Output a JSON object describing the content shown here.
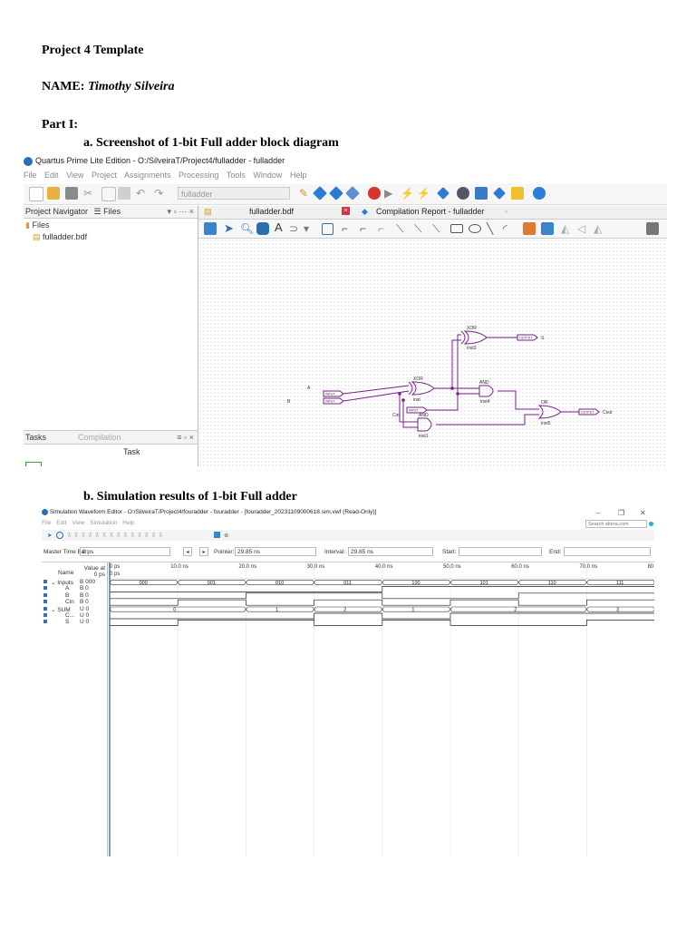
{
  "doc": {
    "heading": "Project 4 Template",
    "name_label": "NAME: ",
    "name_value": "Timothy Silveira",
    "part": "Part I:",
    "item_a": "a.   Screenshot of 1-bit Full adder block diagram",
    "item_b": "b.   Simulation results of 1-bit Full adder"
  },
  "quartus": {
    "title": "Quartus Prime Lite Edition - O:/SilveiraT/Project4/fulladder - fulladder",
    "menu": [
      "File",
      "Edit",
      "View",
      "Project",
      "Assignments",
      "Processing",
      "Tools",
      "Window",
      "Help"
    ],
    "project_combo": "fulladder",
    "navigator_label": "Project Navigator",
    "navigator_view": "Files",
    "files_folder": "Files",
    "file_item": "fulladder.bdf",
    "tab_bdf": "fulladder.bdf",
    "tab_report": "Compilation Report - fulladder",
    "tasks_label": "Tasks",
    "tasks_combo": "Compilation",
    "task_header": "Task",
    "schematic": {
      "input_a": "A",
      "input_b": "B",
      "input_cin": "Cin",
      "output_s": "S",
      "output_cout": "Cout",
      "xor_label": "XOR",
      "and_label": "AND",
      "or_label": "OR",
      "inst_label": "inst",
      "inst1_label": "inst1",
      "inst3_label": "inst3",
      "inst4_label": "inst4",
      "inst5_label": "inst5",
      "input_tag": "INPUT",
      "output_tag": "OUTPUT"
    }
  },
  "waveform": {
    "title": "Simulation Waveform Editor - O:/SilveiraT/Project4/fouradder - fouradder - [fouradder_20231109000618.sim.vwf (Read-Only)]",
    "menu": [
      "File",
      "Edit",
      "View",
      "Simulation",
      "Help"
    ],
    "search_placeholder": "Search altera.com",
    "master_time_label": "Master Time Bar:",
    "master_time": "0 ps",
    "pointer_label": "Pointer:",
    "pointer": "29.85 ns",
    "interval_label": "Interval:",
    "interval": "29.85 ns",
    "start_label": "Start:",
    "end_label": "End:",
    "col_name": "Name",
    "col_value": "Value at 0 ps",
    "cursor_time": "0 ps",
    "cursor_time2": "0 ps",
    "timescale": [
      "0 ps",
      "10.0 ns",
      "20.0 ns",
      "30.0 ns",
      "40.0 ns",
      "50.0 ns",
      "60.0 ns",
      "70.0 ns",
      "80."
    ],
    "signals": [
      {
        "name": "Inputs",
        "value": "B 000",
        "group": true
      },
      {
        "name": "A",
        "value": "B 0"
      },
      {
        "name": "B",
        "value": "B 0"
      },
      {
        "name": "Cin",
        "value": "B 0"
      },
      {
        "name": "SUM",
        "value": "U 0",
        "group": true
      },
      {
        "name": "C...",
        "value": "U 0"
      },
      {
        "name": "S",
        "value": "U 0"
      }
    ],
    "inputs_bus": [
      "000",
      "001",
      "010",
      "011",
      "100",
      "101",
      "110",
      "111"
    ],
    "sum_bus": [
      "0",
      "1",
      "2",
      "1",
      "2",
      "3"
    ],
    "bits": {
      "A": [
        0,
        0,
        0,
        0,
        1,
        1,
        1,
        1
      ],
      "B": [
        0,
        0,
        1,
        1,
        0,
        0,
        1,
        1
      ],
      "Cin": [
        0,
        1,
        0,
        1,
        0,
        1,
        0,
        1
      ],
      "C": [
        0,
        0,
        0,
        1,
        0,
        1,
        1,
        1
      ],
      "S": [
        0,
        1,
        1,
        0,
        1,
        0,
        0,
        1
      ]
    }
  }
}
